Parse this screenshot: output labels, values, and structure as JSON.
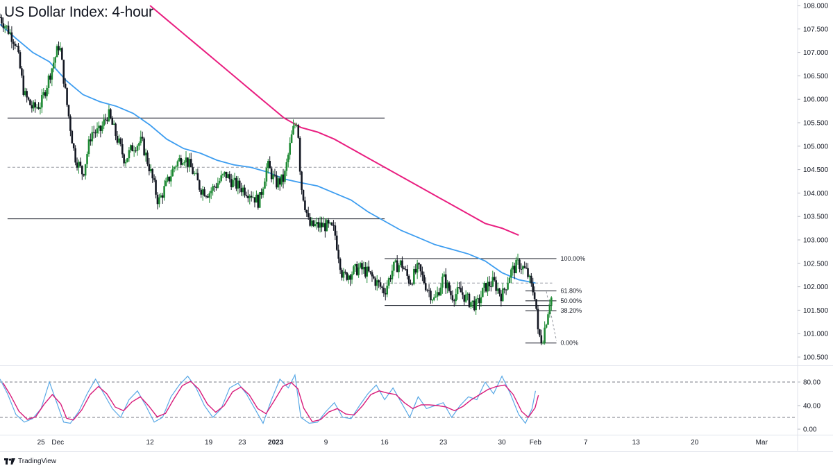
{
  "title": "US Dollar Index: 4-hour",
  "footer": {
    "brand": "TradingView",
    "logo_icon": "tradingview-logo-icon"
  },
  "colors": {
    "up_candle": "#1e8a34",
    "down_candle": "#131722",
    "ma_fast": "#3d9df0",
    "ma_slow": "#e91e80",
    "stoch_k": "#5aa9e6",
    "stoch_d": "#d81b7a",
    "levels": "#131722"
  },
  "chart_data": [
    {
      "type": "candlestick",
      "title": "US Dollar Index: 4-hour",
      "y_ticks": [
        "108.000",
        "107.500",
        "107.000",
        "106.500",
        "106.000",
        "105.500",
        "105.000",
        "104.500",
        "104.000",
        "103.500",
        "103.000",
        "102.500",
        "102.000",
        "101.500",
        "101.000",
        "100.500"
      ],
      "ylim": [
        100.4,
        108.0
      ],
      "x_ticks": [
        {
          "label": "25",
          "x": 25
        },
        {
          "label": "Dec",
          "x": 27
        },
        {
          "label": "12",
          "x": 38
        },
        {
          "label": "19",
          "x": 45
        },
        {
          "label": "23",
          "x": 49
        },
        {
          "label": "2023",
          "x": 53
        },
        {
          "label": "9",
          "x": 59
        },
        {
          "label": "16",
          "x": 66
        },
        {
          "label": "23",
          "x": 73
        },
        {
          "label": "30",
          "x": 80
        },
        {
          "label": "Feb",
          "x": 84
        },
        {
          "label": "7",
          "x": 90
        },
        {
          "label": "13",
          "x": 96
        },
        {
          "label": "20",
          "x": 103
        },
        {
          "label": "Mar",
          "x": 111
        }
      ],
      "xlim": [
        20.1,
        115.2
      ],
      "x_units": "days from Nov 0",
      "price_path": [
        [
          20.1,
          107.75
        ],
        [
          21.0,
          107.5
        ],
        [
          22.0,
          107.2
        ],
        [
          23.0,
          106.1
        ],
        [
          24.0,
          105.8
        ],
        [
          25.0,
          105.9
        ],
        [
          26.0,
          106.5
        ],
        [
          27.2,
          107.2
        ],
        [
          28.0,
          106.0
        ],
        [
          29.0,
          104.8
        ],
        [
          30.0,
          104.4
        ],
        [
          31.0,
          105.3
        ],
        [
          32.0,
          105.3
        ],
        [
          33.0,
          105.7
        ],
        [
          34.0,
          105.2
        ],
        [
          35.0,
          104.7
        ],
        [
          36.0,
          105.0
        ],
        [
          37.0,
          105.1
        ],
        [
          38.0,
          104.5
        ],
        [
          39.0,
          103.8
        ],
        [
          40.0,
          104.2
        ],
        [
          41.0,
          104.6
        ],
        [
          42.0,
          104.8
        ],
        [
          43.0,
          104.5
        ],
        [
          44.0,
          104.1
        ],
        [
          45.0,
          104.0
        ],
        [
          46.0,
          104.2
        ],
        [
          47.0,
          104.4
        ],
        [
          48.0,
          104.2
        ],
        [
          49.0,
          104.1
        ],
        [
          50.0,
          104.0
        ],
        [
          51.0,
          103.8
        ],
        [
          52.0,
          104.6
        ],
        [
          53.0,
          104.2
        ],
        [
          54.0,
          104.3
        ],
        [
          55.0,
          105.3
        ],
        [
          55.6,
          105.6
        ],
        [
          56.0,
          104.2
        ],
        [
          57.0,
          103.3
        ],
        [
          58.0,
          103.3
        ],
        [
          59.0,
          103.3
        ],
        [
          60.0,
          103.2
        ],
        [
          61.0,
          102.2
        ],
        [
          62.0,
          102.3
        ],
        [
          63.0,
          102.4
        ],
        [
          64.0,
          102.3
        ],
        [
          65.0,
          102.1
        ],
        [
          66.0,
          101.9
        ],
        [
          67.0,
          102.4
        ],
        [
          68.0,
          102.5
        ],
        [
          69.0,
          102.1
        ],
        [
          70.0,
          102.4
        ],
        [
          71.0,
          102.0
        ],
        [
          72.0,
          101.7
        ],
        [
          73.0,
          102.2
        ],
        [
          74.0,
          101.8
        ],
        [
          75.0,
          101.9
        ],
        [
          76.0,
          101.7
        ],
        [
          77.0,
          101.6
        ],
        [
          78.0,
          102.0
        ],
        [
          79.0,
          102.1
        ],
        [
          80.0,
          101.8
        ],
        [
          81.0,
          102.3
        ],
        [
          82.0,
          102.5
        ],
        [
          83.0,
          102.3
        ],
        [
          83.5,
          102.0
        ],
        [
          84.0,
          101.8
        ],
        [
          84.3,
          101.0
        ],
        [
          84.8,
          100.85
        ],
        [
          85.3,
          101.3
        ],
        [
          85.7,
          101.7
        ],
        [
          86.0,
          101.8
        ]
      ],
      "ma_fast": [
        [
          20.1,
          107.6
        ],
        [
          22.0,
          107.3
        ],
        [
          24.0,
          107.0
        ],
        [
          26.0,
          106.8
        ],
        [
          27.0,
          106.6
        ],
        [
          28.0,
          106.4
        ],
        [
          29.0,
          106.25
        ],
        [
          30.0,
          106.1
        ],
        [
          32.0,
          105.95
        ],
        [
          34.0,
          105.85
        ],
        [
          36.0,
          105.7
        ],
        [
          38.0,
          105.45
        ],
        [
          40.0,
          105.15
        ],
        [
          42.0,
          104.95
        ],
        [
          44.0,
          104.85
        ],
        [
          46.0,
          104.7
        ],
        [
          48.0,
          104.6
        ],
        [
          50.0,
          104.55
        ],
        [
          52.0,
          104.45
        ],
        [
          54.0,
          104.3
        ],
        [
          56.0,
          104.22
        ],
        [
          58.0,
          104.15
        ],
        [
          60.0,
          104.0
        ],
        [
          62.0,
          103.85
        ],
        [
          64.0,
          103.6
        ],
        [
          66.0,
          103.4
        ],
        [
          68.0,
          103.2
        ],
        [
          70.0,
          103.05
        ],
        [
          72.0,
          102.9
        ],
        [
          74.0,
          102.8
        ],
        [
          76.0,
          102.7
        ],
        [
          78.0,
          102.55
        ],
        [
          80.0,
          102.3
        ],
        [
          82.0,
          102.15
        ],
        [
          84.0,
          102.08
        ]
      ],
      "ma_slow": [
        [
          38.0,
          108.0
        ],
        [
          40.0,
          107.7
        ],
        [
          42.0,
          107.4
        ],
        [
          44.0,
          107.1
        ],
        [
          46.0,
          106.8
        ],
        [
          48.0,
          106.5
        ],
        [
          50.0,
          106.2
        ],
        [
          52.0,
          105.9
        ],
        [
          54.0,
          105.6
        ],
        [
          56.0,
          105.4
        ],
        [
          58.0,
          105.3
        ],
        [
          60.0,
          105.15
        ],
        [
          62.0,
          104.95
        ],
        [
          64.0,
          104.75
        ],
        [
          66.0,
          104.55
        ],
        [
          68.0,
          104.35
        ],
        [
          70.0,
          104.15
        ],
        [
          72.0,
          103.95
        ],
        [
          74.0,
          103.75
        ],
        [
          76.0,
          103.55
        ],
        [
          78.0,
          103.35
        ],
        [
          80.0,
          103.25
        ],
        [
          82.0,
          103.1
        ]
      ],
      "horizontal_levels": [
        {
          "value": 105.6,
          "x_from": 21.0,
          "x_to": 66.0,
          "style": "solid"
        },
        {
          "value": 104.55,
          "x_from": 21.0,
          "x_to": 66.0,
          "style": "dashed"
        },
        {
          "value": 103.45,
          "x_from": 21.0,
          "x_to": 66.0,
          "style": "solid"
        },
        {
          "value": 102.6,
          "x_from": 66.0,
          "x_to": 86.0,
          "style": "solid"
        },
        {
          "value": 102.08,
          "x_from": 66.0,
          "x_to": 86.0,
          "style": "dashed"
        },
        {
          "value": 101.6,
          "x_from": 66.0,
          "x_to": 86.0,
          "style": "solid"
        }
      ],
      "fibonacci": {
        "from": 102.6,
        "to": 100.8,
        "x_from": 82.8,
        "x_to": 86.5,
        "levels": [
          {
            "label": "100.00%",
            "value": 102.6
          },
          {
            "label": "61.80%",
            "value": 101.91
          },
          {
            "label": "50.00%",
            "value": 101.7
          },
          {
            "label": "38.20%",
            "value": 101.49
          },
          {
            "label": "0.00%",
            "value": 100.8
          }
        ]
      }
    },
    {
      "type": "line",
      "name": "stochastic",
      "y_ticks": [
        "80.00",
        "40.00",
        "0.00"
      ],
      "ylim": [
        -6,
        94
      ],
      "levels": [
        80,
        20
      ],
      "k_points": [
        [
          20.1,
          85
        ],
        [
          21.0,
          60
        ],
        [
          22.0,
          25
        ],
        [
          23.0,
          12
        ],
        [
          24.0,
          18
        ],
        [
          25.0,
          35
        ],
        [
          26.0,
          80
        ],
        [
          27.0,
          40
        ],
        [
          27.7,
          12
        ],
        [
          28.5,
          10
        ],
        [
          29.5,
          30
        ],
        [
          30.5,
          60
        ],
        [
          31.5,
          85
        ],
        [
          32.5,
          60
        ],
        [
          33.5,
          35
        ],
        [
          34.5,
          20
        ],
        [
          35.5,
          50
        ],
        [
          36.5,
          65
        ],
        [
          37.5,
          40
        ],
        [
          38.5,
          12
        ],
        [
          39.5,
          20
        ],
        [
          40.5,
          55
        ],
        [
          41.5,
          75
        ],
        [
          42.5,
          90
        ],
        [
          43.5,
          70
        ],
        [
          44.5,
          40
        ],
        [
          45.5,
          20
        ],
        [
          46.5,
          35
        ],
        [
          47.5,
          70
        ],
        [
          48.5,
          78
        ],
        [
          49.5,
          60
        ],
        [
          50.5,
          35
        ],
        [
          51.5,
          10
        ],
        [
          52.5,
          50
        ],
        [
          53.5,
          85
        ],
        [
          54.5,
          70
        ],
        [
          55.3,
          92
        ],
        [
          56.0,
          20
        ],
        [
          57.0,
          10
        ],
        [
          58.0,
          12
        ],
        [
          59.0,
          30
        ],
        [
          60.0,
          45
        ],
        [
          61.0,
          20
        ],
        [
          62.0,
          18
        ],
        [
          63.0,
          40
        ],
        [
          64.0,
          60
        ],
        [
          65.0,
          75
        ],
        [
          66.0,
          50
        ],
        [
          67.0,
          70
        ],
        [
          68.0,
          45
        ],
        [
          69.0,
          20
        ],
        [
          70.0,
          55
        ],
        [
          71.0,
          35
        ],
        [
          72.0,
          40
        ],
        [
          73.0,
          45
        ],
        [
          74.0,
          20
        ],
        [
          75.0,
          40
        ],
        [
          76.0,
          55
        ],
        [
          77.0,
          50
        ],
        [
          78.0,
          80
        ],
        [
          79.0,
          60
        ],
        [
          80.0,
          90
        ],
        [
          81.0,
          60
        ],
        [
          82.0,
          25
        ],
        [
          82.8,
          10
        ],
        [
          83.6,
          35
        ],
        [
          84.0,
          65
        ]
      ]
    }
  ]
}
